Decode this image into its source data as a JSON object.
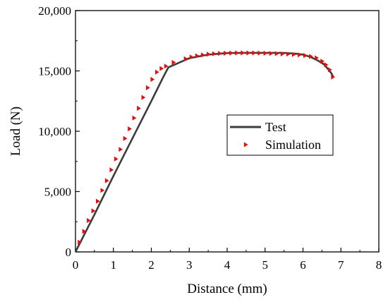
{
  "chart_data": {
    "type": "line",
    "xlabel": "Distance (mm)",
    "ylabel": "Load (N)",
    "xlim": [
      0,
      8
    ],
    "ylim": [
      0,
      20000
    ],
    "x_ticks": [
      0,
      1,
      2,
      3,
      4,
      5,
      6,
      7,
      8
    ],
    "x_tick_labels": [
      "0",
      "1",
      "2",
      "3",
      "4",
      "5",
      "6",
      "7",
      "8"
    ],
    "y_ticks": [
      0,
      5000,
      10000,
      15000,
      20000
    ],
    "y_tick_labels": [
      "0",
      "5,000",
      "10,000",
      "15,000",
      "20,000"
    ],
    "grid": false,
    "legend_position": "right-center",
    "colors": {
      "test": "#3c3c3c",
      "simulation": "#e01010",
      "axis": "#000000"
    },
    "series": [
      {
        "name": "Test",
        "style": "line",
        "x": [
          0,
          0.5,
          1.0,
          1.5,
          2.0,
          2.3,
          2.45,
          2.6,
          3.0,
          3.5,
          4.0,
          4.5,
          5.0,
          5.5,
          5.8,
          6.0,
          6.2,
          6.4,
          6.55,
          6.65,
          6.75,
          6.8
        ],
        "y": [
          0,
          3100,
          6300,
          9400,
          12500,
          14400,
          15300,
          15500,
          16050,
          16350,
          16480,
          16500,
          16500,
          16490,
          16430,
          16350,
          16150,
          15850,
          15550,
          15200,
          14800,
          14500
        ]
      },
      {
        "name": "Simulation",
        "style": "marker",
        "marker": "triangle-right",
        "x": [
          0.1,
          0.22,
          0.34,
          0.46,
          0.58,
          0.7,
          0.82,
          0.94,
          1.06,
          1.18,
          1.3,
          1.42,
          1.54,
          1.66,
          1.78,
          1.9,
          2.02,
          2.14,
          2.26,
          2.38,
          2.58,
          2.9,
          3.05,
          3.2,
          3.35,
          3.5,
          3.65,
          3.8,
          3.95,
          4.1,
          4.25,
          4.4,
          4.55,
          4.7,
          4.85,
          5.0,
          5.15,
          5.3,
          5.45,
          5.6,
          5.75,
          5.9,
          6.05,
          6.2,
          6.35,
          6.5,
          6.6,
          6.7,
          6.78
        ],
        "y": [
          800,
          1700,
          2600,
          3400,
          4200,
          5100,
          5900,
          6800,
          7700,
          8500,
          9400,
          10200,
          11100,
          11900,
          12800,
          13600,
          14300,
          14900,
          15200,
          15400,
          15700,
          16000,
          16150,
          16250,
          16320,
          16380,
          16420,
          16450,
          16470,
          16480,
          16490,
          16490,
          16490,
          16490,
          16480,
          16470,
          16450,
          16430,
          16410,
          16390,
          16360,
          16330,
          16280,
          16200,
          16080,
          15800,
          15500,
          15100,
          14500
        ]
      }
    ]
  }
}
